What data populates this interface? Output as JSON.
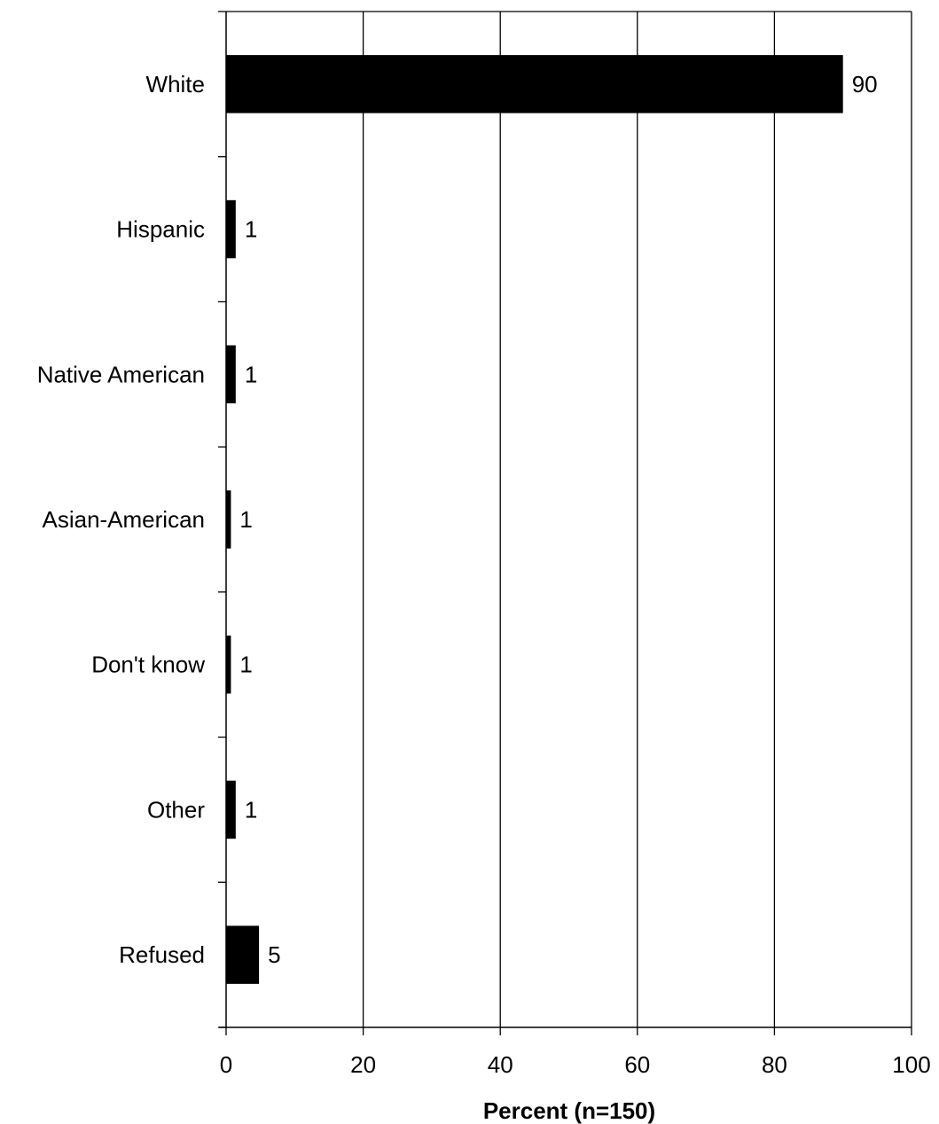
{
  "chart_data": {
    "type": "bar",
    "orientation": "horizontal",
    "categories": [
      "White",
      "Hispanic",
      "Native American",
      "Asian-American",
      "Don't know",
      "Other",
      "Refused"
    ],
    "series": [
      {
        "values": [
          90,
          1.4,
          1.4,
          0.7,
          0.7,
          1.4,
          4.8
        ],
        "data_labels": [
          "90",
          "1",
          "1",
          "1",
          "1",
          "1",
          "5"
        ]
      }
    ],
    "xlabel": "Percent (n=150)",
    "ylabel": "",
    "xlim": [
      0,
      100
    ],
    "xticks": [
      0,
      20,
      40,
      60,
      80,
      100
    ],
    "xtick_labels": [
      "0",
      "20",
      "40",
      "60",
      "80",
      "100"
    ],
    "grid": "vertical",
    "legend": "none",
    "colors": {
      "bar": "#000000",
      "grid": "#000000",
      "background": "#ffffff"
    }
  }
}
